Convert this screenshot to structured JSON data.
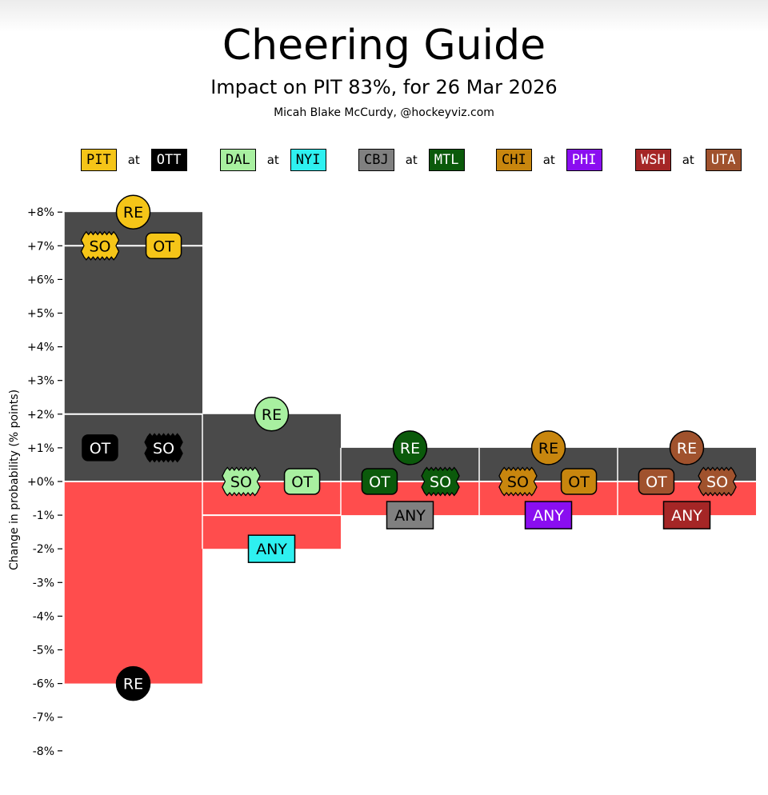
{
  "header": {
    "title": "Cheering Guide",
    "subtitle": "Impact on PIT 83%, for 26 Mar 2026",
    "credit": "Micah Blake McCurdy, @hockeyviz.com"
  },
  "legend": {
    "at_word": "at",
    "games": [
      {
        "away": {
          "code": "PIT",
          "bg": "#f5c518",
          "fg": "#000000"
        },
        "home": {
          "code": "OTT",
          "bg": "#000000",
          "fg": "#ffffff"
        }
      },
      {
        "away": {
          "code": "DAL",
          "bg": "#a8f0a0",
          "fg": "#000000"
        },
        "home": {
          "code": "NYI",
          "bg": "#2ef0f0",
          "fg": "#000000"
        }
      },
      {
        "away": {
          "code": "CBJ",
          "bg": "#808080",
          "fg": "#000000"
        },
        "home": {
          "code": "MTL",
          "bg": "#0b5a0b",
          "fg": "#ffffff"
        }
      },
      {
        "away": {
          "code": "CHI",
          "bg": "#c8860e",
          "fg": "#000000"
        },
        "home": {
          "code": "PHI",
          "bg": "#8a0ef0",
          "fg": "#ffffff"
        }
      },
      {
        "away": {
          "code": "WSH",
          "bg": "#a52626",
          "fg": "#ffffff"
        },
        "home": {
          "code": "UTA",
          "bg": "#a0522d",
          "fg": "#ffffff"
        }
      }
    ]
  },
  "chart_data": {
    "type": "bar",
    "title": "Cheering Guide",
    "ylabel": "Change in probability (% points)",
    "ylim": [
      -8,
      8
    ],
    "yticks": [
      "+8%",
      "+7%",
      "+6%",
      "+5%",
      "+4%",
      "+3%",
      "+2%",
      "+1%",
      "+0%",
      "-1%",
      "-2%",
      "-3%",
      "-4%",
      "-5%",
      "-6%",
      "-7%",
      "-8%"
    ],
    "colors": {
      "positive": "#4a4a4a",
      "negative": "#ff4d4d"
    },
    "games": [
      {
        "matchup": "PIT at OTT",
        "max": 8,
        "min": -6,
        "lines": [
          7,
          2
        ],
        "markers": [
          {
            "label": "RE",
            "shape": "circle",
            "team": "PIT",
            "value": 8,
            "slot": 0.5
          },
          {
            "label": "SO",
            "shape": "zigzag",
            "team": "PIT",
            "value": 7,
            "slot": 0.26
          },
          {
            "label": "OT",
            "shape": "rounded",
            "team": "PIT",
            "value": 7,
            "slot": 0.72
          },
          {
            "label": "OT",
            "shape": "rounded",
            "team": "OTT",
            "value": 1,
            "slot": 0.26
          },
          {
            "label": "SO",
            "shape": "zigzag",
            "team": "OTT",
            "value": 1,
            "slot": 0.72
          },
          {
            "label": "RE",
            "shape": "circle",
            "team": "OTT",
            "value": -6,
            "slot": 0.5
          }
        ]
      },
      {
        "matchup": "DAL at NYI",
        "max": 2,
        "min": -2,
        "lines": [
          -1
        ],
        "markers": [
          {
            "label": "RE",
            "shape": "circle",
            "team": "DAL",
            "value": 2,
            "slot": 0.5
          },
          {
            "label": "SO",
            "shape": "zigzag",
            "team": "DAL",
            "value": 0,
            "slot": 0.28
          },
          {
            "label": "OT",
            "shape": "rounded",
            "team": "DAL",
            "value": 0,
            "slot": 0.72
          },
          {
            "label": "ANY",
            "shape": "square",
            "team": "NYI",
            "value": -2,
            "slot": 0.5
          }
        ]
      },
      {
        "matchup": "CBJ at MTL",
        "max": 1,
        "min": -1,
        "lines": [],
        "markers": [
          {
            "label": "RE",
            "shape": "circle",
            "team": "MTL",
            "value": 1,
            "slot": 0.5
          },
          {
            "label": "OT",
            "shape": "rounded",
            "team": "MTL",
            "value": 0,
            "slot": 0.28
          },
          {
            "label": "SO",
            "shape": "zigzag",
            "team": "MTL",
            "value": 0,
            "slot": 0.72
          },
          {
            "label": "ANY",
            "shape": "square",
            "team": "CBJ",
            "value": -1,
            "slot": 0.5
          }
        ]
      },
      {
        "matchup": "CHI at PHI",
        "max": 1,
        "min": -1,
        "lines": [],
        "markers": [
          {
            "label": "RE",
            "shape": "circle",
            "team": "CHI",
            "value": 1,
            "slot": 0.5
          },
          {
            "label": "SO",
            "shape": "zigzag",
            "team": "CHI",
            "value": 0,
            "slot": 0.28
          },
          {
            "label": "OT",
            "shape": "rounded",
            "team": "CHI",
            "value": 0,
            "slot": 0.72
          },
          {
            "label": "ANY",
            "shape": "square",
            "team": "PHI",
            "value": -1,
            "slot": 0.5
          }
        ]
      },
      {
        "matchup": "WSH at UTA",
        "max": 1,
        "min": -1,
        "lines": [],
        "markers": [
          {
            "label": "RE",
            "shape": "circle",
            "team": "UTA",
            "value": 1,
            "slot": 0.5
          },
          {
            "label": "OT",
            "shape": "rounded",
            "team": "UTA",
            "value": 0,
            "slot": 0.28
          },
          {
            "label": "SO",
            "shape": "zigzag",
            "team": "UTA",
            "value": 0,
            "slot": 0.72
          },
          {
            "label": "ANY",
            "shape": "square",
            "team": "WSH",
            "value": -1,
            "slot": 0.5
          }
        ]
      }
    ]
  }
}
